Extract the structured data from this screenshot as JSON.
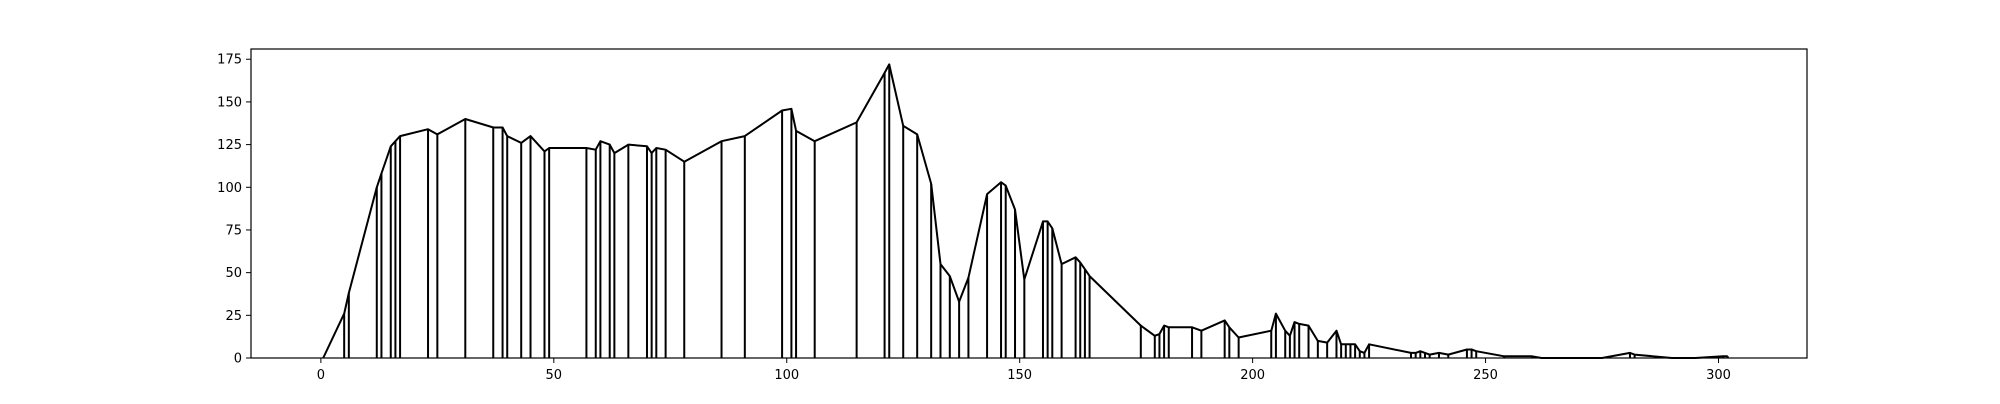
{
  "chart_data": {
    "type": "line",
    "title": "",
    "xlabel": "",
    "ylabel": "",
    "xlim": [
      -15,
      319
    ],
    "ylim": [
      0,
      181
    ],
    "x_ticks": [
      0,
      50,
      100,
      150,
      200,
      250,
      300
    ],
    "y_ticks": [
      0,
      25,
      50,
      75,
      100,
      125,
      150,
      175
    ],
    "grid": false,
    "legend": "none",
    "line_color": "#000000",
    "drop_lines_to_zero": true,
    "series": [
      {
        "x": [
          0.5,
          5,
          6,
          12,
          13,
          15,
          16,
          17,
          23,
          25,
          31,
          37,
          39,
          40,
          43,
          45,
          48,
          49,
          57,
          59,
          60,
          62,
          63,
          66,
          70,
          71,
          72,
          74,
          78,
          86,
          91,
          99,
          101,
          102,
          106,
          115,
          121,
          122,
          125,
          128,
          131,
          133,
          135,
          137,
          139,
          143,
          146,
          147,
          149,
          151,
          155,
          156,
          157,
          159,
          162,
          163,
          164,
          165,
          176,
          179,
          180,
          181,
          182,
          187,
          189,
          194,
          195,
          197,
          204,
          205,
          207,
          208,
          209,
          210,
          212,
          214,
          216,
          218,
          219,
          220,
          221,
          222,
          223,
          224,
          225,
          234,
          235,
          236,
          237,
          238,
          240,
          242,
          246,
          247,
          248,
          254,
          260,
          262,
          270,
          275,
          281,
          282,
          290,
          295,
          301,
          302
        ],
        "y": [
          0,
          26,
          38,
          100,
          108,
          124,
          127,
          130,
          134,
          131,
          140,
          135,
          135,
          130,
          126,
          130,
          121,
          123,
          123,
          122,
          127,
          125,
          120,
          125,
          124,
          120,
          123,
          122,
          115,
          127,
          130,
          145,
          146,
          133,
          127,
          138,
          167,
          172,
          136,
          131,
          102,
          55,
          48,
          33,
          47,
          96,
          103,
          101,
          87,
          46,
          80,
          80,
          76,
          55,
          59,
          56,
          52,
          48,
          19,
          13,
          14,
          19,
          18,
          18,
          16,
          22,
          18,
          12,
          16,
          26,
          16,
          13,
          21,
          20,
          19,
          10,
          9,
          16,
          8,
          8,
          8,
          8,
          4,
          3,
          8,
          3,
          3,
          4,
          3,
          2,
          3,
          2,
          5,
          5,
          4,
          1,
          1,
          0,
          0,
          0,
          3,
          2,
          0,
          0,
          1,
          1
        ]
      }
    ]
  }
}
